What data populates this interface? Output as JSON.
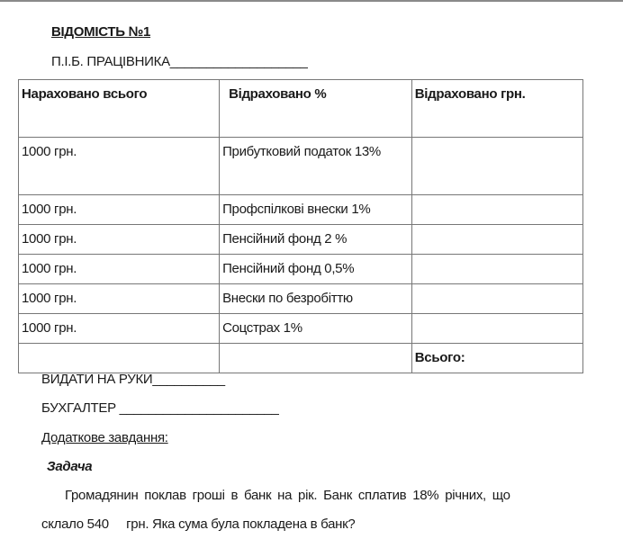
{
  "title": "ВІДОМІСТЬ №1",
  "employee_label": "П.І.Б. ПРАЦІВНИКА___________________",
  "table": {
    "headers": [
      "Нараховано всього",
      "Відраховано  %",
      "Відраховано грн."
    ],
    "rows": [
      [
        "1000 грн.",
        "Прибутковий податок 13%",
        ""
      ],
      [
        "1000 грн.",
        "Профспілкові внески 1%",
        ""
      ],
      [
        "1000 грн.",
        "Пенсійний фонд 2 %",
        ""
      ],
      [
        "1000 грн.",
        "Пенсійний фонд 0,5%",
        ""
      ],
      [
        "1000 грн.",
        "Внески по безробіттю",
        ""
      ],
      [
        "1000 грн.",
        "Соцстрах 1%",
        ""
      ],
      [
        "",
        "",
        "Всього:"
      ]
    ]
  },
  "payout_label": "ВИДАТИ НА РУКИ__________",
  "accountant_label": "БУХГАЛТЕР ______________________",
  "extra_task_label": "Додаткове завдання:",
  "task_heading": "Задача",
  "task_text_line1": "Громадянин поклав гроші в банк на рік. Банк сплатив 18% річних, що",
  "task_text_line2": "склало 540     грн. Яка сума була покладена в банк?"
}
